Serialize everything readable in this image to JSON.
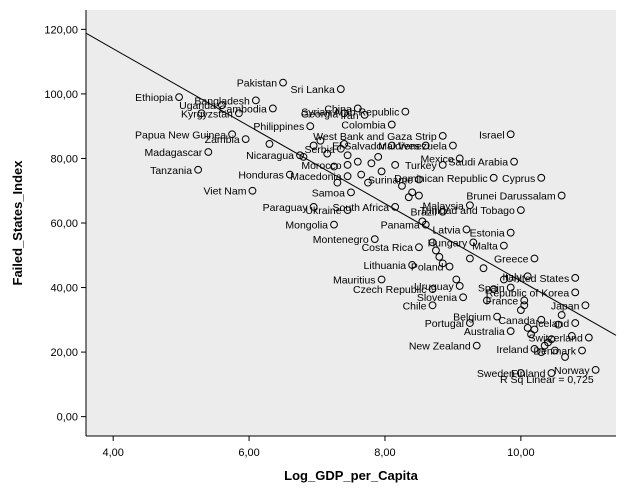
{
  "chart_data": {
    "type": "scatter",
    "xlabel": "Log_GDP_per_Capita",
    "ylabel": "Failed_States_Index",
    "xlim": [
      3.6,
      11.4
    ],
    "ylim": [
      -6,
      126
    ],
    "x_ticks": [
      4,
      6,
      8,
      10
    ],
    "y_ticks": [
      0,
      20,
      40,
      60,
      80,
      100,
      120
    ],
    "x_tick_labels": [
      "4,00",
      "6,00",
      "8,00",
      "10,00"
    ],
    "y_tick_labels": [
      "0,00",
      "20,00",
      "40,00",
      "60,00",
      "80,00",
      "100,00",
      "120,00"
    ],
    "grid": false,
    "plot_background": "#ececec",
    "marker_color": "#000000",
    "fit_line": {
      "intercept": 162.0,
      "slope": -12.0,
      "x_range": [
        3.6,
        11.4
      ]
    },
    "r_squared_label": "R Sq Linear = 0,725",
    "labeled_points": [
      {
        "label": "Pakistan",
        "x": 6.5,
        "y": 103.5
      },
      {
        "label": "Sri Lanka",
        "x": 7.35,
        "y": 101.5
      },
      {
        "label": "Ethiopia",
        "x": 4.97,
        "y": 99.0
      },
      {
        "label": "Bangladesh",
        "x": 6.1,
        "y": 98.0
      },
      {
        "label": "Uganda",
        "x": 5.6,
        "y": 96.5
      },
      {
        "label": "Cambodia",
        "x": 6.35,
        "y": 95.5
      },
      {
        "label": "China",
        "x": 7.6,
        "y": 95.5
      },
      {
        "label": "Syrian Arab Republic",
        "x": 8.3,
        "y": 94.5
      },
      {
        "label": "Kyrgyzstan",
        "x": 5.85,
        "y": 94.0
      },
      {
        "label": "Georgia",
        "x": 7.4,
        "y": 94.0
      },
      {
        "label": "Iran",
        "x": 7.7,
        "y": 93.5
      },
      {
        "label": "Colombia",
        "x": 8.1,
        "y": 90.5
      },
      {
        "label": "Philippines",
        "x": 6.9,
        "y": 90.0
      },
      {
        "label": "Papua New Guinea",
        "x": 5.75,
        "y": 87.5
      },
      {
        "label": "Zambia",
        "x": 5.95,
        "y": 86.0
      },
      {
        "label": "West Bank and Gaza Strip",
        "x": 8.85,
        "y": 87.0
      },
      {
        "label": "Israel",
        "x": 9.85,
        "y": 87.5
      },
      {
        "label": "El Salvador",
        "x": 8.1,
        "y": 84.0
      },
      {
        "label": "Maldives",
        "x": 8.6,
        "y": 84.0
      },
      {
        "label": "Venezuela",
        "x": 9.0,
        "y": 84.0
      },
      {
        "label": "Serbia",
        "x": 7.35,
        "y": 83.0
      },
      {
        "label": "Madagascar",
        "x": 5.4,
        "y": 82.0
      },
      {
        "label": "Nicaragua",
        "x": 6.75,
        "y": 81.0
      },
      {
        "label": "Mexico",
        "x": 9.1,
        "y": 80.0
      },
      {
        "label": "Saudi Arabia",
        "x": 9.9,
        "y": 79.0
      },
      {
        "label": "Morocco",
        "x": 7.45,
        "y": 78.0
      },
      {
        "label": "Turkey",
        "x": 8.85,
        "y": 78.0
      },
      {
        "label": "Tanzania",
        "x": 5.25,
        "y": 76.5
      },
      {
        "label": "Honduras",
        "x": 6.6,
        "y": 75.0
      },
      {
        "label": "Macedonia",
        "x": 7.45,
        "y": 74.5
      },
      {
        "label": "Dominican Republic",
        "x": 9.6,
        "y": 74.0
      },
      {
        "label": "Cyprus",
        "x": 10.3,
        "y": 74.0
      },
      {
        "label": "Suriname",
        "x": 8.5,
        "y": 73.5
      },
      {
        "label": "Viet Nam",
        "x": 6.05,
        "y": 70.0
      },
      {
        "label": "Samoa",
        "x": 7.5,
        "y": 69.5
      },
      {
        "label": "Brunei Darussalam",
        "x": 10.6,
        "y": 68.5
      },
      {
        "label": "Paraguay",
        "x": 6.95,
        "y": 65.0
      },
      {
        "label": "South Africa",
        "x": 8.15,
        "y": 65.0
      },
      {
        "label": "Malaysia",
        "x": 9.25,
        "y": 65.5
      },
      {
        "label": "Ukraine",
        "x": 7.45,
        "y": 64.0
      },
      {
        "label": "Brazil",
        "x": 8.85,
        "y": 63.5
      },
      {
        "label": "Trinidad and Tobago",
        "x": 10.0,
        "y": 64.0
      },
      {
        "label": "Mongolia",
        "x": 7.25,
        "y": 59.5
      },
      {
        "label": "Panama",
        "x": 8.6,
        "y": 59.5
      },
      {
        "label": "Latvia",
        "x": 9.2,
        "y": 58.0
      },
      {
        "label": "Estonia",
        "x": 9.85,
        "y": 57.0
      },
      {
        "label": "Montenegro",
        "x": 7.85,
        "y": 55.0
      },
      {
        "label": "Costa Rica",
        "x": 8.5,
        "y": 52.5
      },
      {
        "label": "Hungary",
        "x": 9.3,
        "y": 54.0
      },
      {
        "label": "Malta",
        "x": 9.75,
        "y": 53.0
      },
      {
        "label": "Greece",
        "x": 10.2,
        "y": 49.0
      },
      {
        "label": "Lithuania",
        "x": 8.4,
        "y": 47.0
      },
      {
        "label": "Poland",
        "x": 8.95,
        "y": 46.5
      },
      {
        "label": "Italy",
        "x": 10.1,
        "y": 43.5
      },
      {
        "label": "United States",
        "x": 10.8,
        "y": 43.0
      },
      {
        "label": "Mauritius",
        "x": 7.95,
        "y": 42.5
      },
      {
        "label": "Uruguay",
        "x": 9.1,
        "y": 40.5
      },
      {
        "label": "Spain",
        "x": 9.85,
        "y": 40.0
      },
      {
        "label": "Czech Republic",
        "x": 8.7,
        "y": 39.5
      },
      {
        "label": "Republic of Korea",
        "x": 10.8,
        "y": 38.5
      },
      {
        "label": "Slovenia",
        "x": 9.15,
        "y": 37.0
      },
      {
        "label": "France",
        "x": 10.05,
        "y": 36.0
      },
      {
        "label": "Chile",
        "x": 8.7,
        "y": 34.5
      },
      {
        "label": "Japan",
        "x": 10.95,
        "y": 34.5
      },
      {
        "label": "Belgium",
        "x": 9.65,
        "y": 31.0
      },
      {
        "label": "Canada",
        "x": 10.3,
        "y": 30.0
      },
      {
        "label": "Portugal",
        "x": 9.25,
        "y": 29.0
      },
      {
        "label": "Iceland",
        "x": 10.8,
        "y": 29.0
      },
      {
        "label": "Australia",
        "x": 9.85,
        "y": 26.5
      },
      {
        "label": "Switzerland",
        "x": 11.0,
        "y": 24.5
      },
      {
        "label": "New Zealand",
        "x": 9.35,
        "y": 22.0
      },
      {
        "label": "Ireland",
        "x": 10.2,
        "y": 21.0
      },
      {
        "label": "Denmark",
        "x": 10.9,
        "y": 20.5
      },
      {
        "label": "Norway",
        "x": 11.1,
        "y": 14.5
      },
      {
        "label": "Sweden",
        "x": 10.0,
        "y": 13.5
      },
      {
        "label": "Finland",
        "x": 10.45,
        "y": 13.5
      }
    ],
    "unlabeled_points": [
      {
        "x": 5.3,
        "y": 94.0
      },
      {
        "x": 6.3,
        "y": 84.5
      },
      {
        "x": 6.8,
        "y": 80.5
      },
      {
        "x": 6.95,
        "y": 84.0
      },
      {
        "x": 7.05,
        "y": 85.5
      },
      {
        "x": 7.15,
        "y": 81.5
      },
      {
        "x": 7.25,
        "y": 77.5
      },
      {
        "x": 7.3,
        "y": 72.5
      },
      {
        "x": 7.4,
        "y": 84.5
      },
      {
        "x": 7.45,
        "y": 81.0
      },
      {
        "x": 7.6,
        "y": 79.0
      },
      {
        "x": 7.65,
        "y": 75.0
      },
      {
        "x": 7.75,
        "y": 72.5
      },
      {
        "x": 7.8,
        "y": 78.5
      },
      {
        "x": 7.9,
        "y": 80.5
      },
      {
        "x": 7.95,
        "y": 76.0
      },
      {
        "x": 8.15,
        "y": 78.0
      },
      {
        "x": 8.25,
        "y": 71.5
      },
      {
        "x": 8.35,
        "y": 68.0
      },
      {
        "x": 8.4,
        "y": 69.5
      },
      {
        "x": 8.5,
        "y": 68.5
      },
      {
        "x": 8.55,
        "y": 60.5
      },
      {
        "x": 8.7,
        "y": 54.0
      },
      {
        "x": 8.75,
        "y": 51.5
      },
      {
        "x": 8.8,
        "y": 49.5
      },
      {
        "x": 8.85,
        "y": 47.5
      },
      {
        "x": 9.05,
        "y": 42.5
      },
      {
        "x": 9.25,
        "y": 49.0
      },
      {
        "x": 9.45,
        "y": 46.0
      },
      {
        "x": 9.5,
        "y": 36.0
      },
      {
        "x": 9.6,
        "y": 39.5
      },
      {
        "x": 9.75,
        "y": 42.5
      },
      {
        "x": 10.0,
        "y": 33.0
      },
      {
        "x": 10.05,
        "y": 34.5
      },
      {
        "x": 10.1,
        "y": 27.5
      },
      {
        "x": 10.15,
        "y": 25.5
      },
      {
        "x": 10.2,
        "y": 27.0
      },
      {
        "x": 10.3,
        "y": 20.0
      },
      {
        "x": 10.35,
        "y": 22.0
      },
      {
        "x": 10.4,
        "y": 23.0
      },
      {
        "x": 10.45,
        "y": 24.0
      },
      {
        "x": 10.5,
        "y": 20.5
      },
      {
        "x": 10.55,
        "y": 28.5
      },
      {
        "x": 10.6,
        "y": 31.5
      },
      {
        "x": 10.65,
        "y": 18.5
      },
      {
        "x": 10.75,
        "y": 25.0
      }
    ]
  }
}
